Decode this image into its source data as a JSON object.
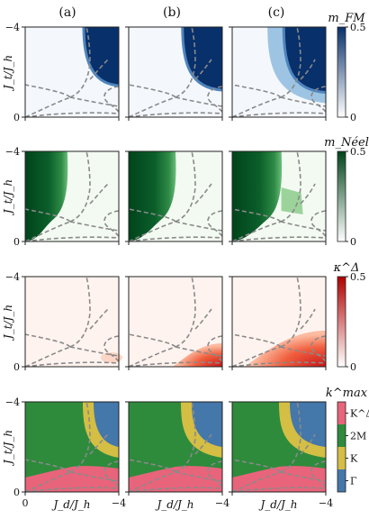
{
  "columns": [
    "(a)",
    "(b)",
    "(c)"
  ],
  "axes": {
    "ylabel": "J_t/J_h",
    "xlabel": "J_d/J_h",
    "x_ticks": [
      "0",
      "−4"
    ],
    "y_ticks": [
      "−4",
      "0"
    ],
    "x_range": [
      0,
      -4
    ],
    "y_range": [
      0,
      -4
    ]
  },
  "rows": [
    {
      "key": "fm",
      "colorbar_title": "m_FM",
      "colorbar_ticks": [
        "0.5",
        "0"
      ],
      "colors": [
        "#ffffff",
        "#08306b"
      ]
    },
    {
      "key": "neel",
      "colorbar_title": "m_Néel",
      "colorbar_ticks": [
        "0.5",
        "0"
      ],
      "colors": [
        "#ffffff",
        "#00441b"
      ]
    },
    {
      "key": "kappa",
      "colorbar_title": "κ^Δ",
      "colorbar_ticks": [
        "0.5",
        "0"
      ],
      "colors": [
        "#ffffff",
        "#b00000"
      ]
    },
    {
      "key": "kmax",
      "colorbar_title": "k^max",
      "categories": [
        "K^Δ",
        "2M",
        "K",
        "Γ"
      ],
      "category_colors": [
        "#e8647b",
        "#2e8b3c",
        "#d4be44",
        "#4477aa"
      ]
    }
  ],
  "chart_data": {
    "type": "heatmap",
    "panels": 12,
    "grid": "4 rows × 3 columns",
    "x": {
      "label": "J_d/J_h",
      "range": [
        0,
        -4
      ]
    },
    "y": {
      "label": "J_t/J_h",
      "range": [
        0,
        -4
      ]
    },
    "quantities": [
      "m_FM",
      "m_Néel",
      "κ^Δ",
      "k^max"
    ],
    "colorbar_range": [
      0,
      0.5
    ],
    "k_max_categories": [
      "K^Δ",
      "2M",
      "K",
      "Γ"
    ],
    "regions": {
      "fm": {
        "corner": "top-right",
        "onset_Jd": [
          -2.5,
          -2.3,
          -2.2
        ],
        "onset_Jt": [
          -2.6,
          -2.4,
          -2.3
        ],
        "value": 0.5
      },
      "neel": {
        "corner": "top-left",
        "extent_Jd": [
          -1.8,
          -2.0,
          -2.1
        ],
        "value": 0.5
      },
      "kappa": {
        "corner": "bottom-right",
        "peak": [
          0.04,
          0.25,
          0.5
        ]
      }
    }
  }
}
